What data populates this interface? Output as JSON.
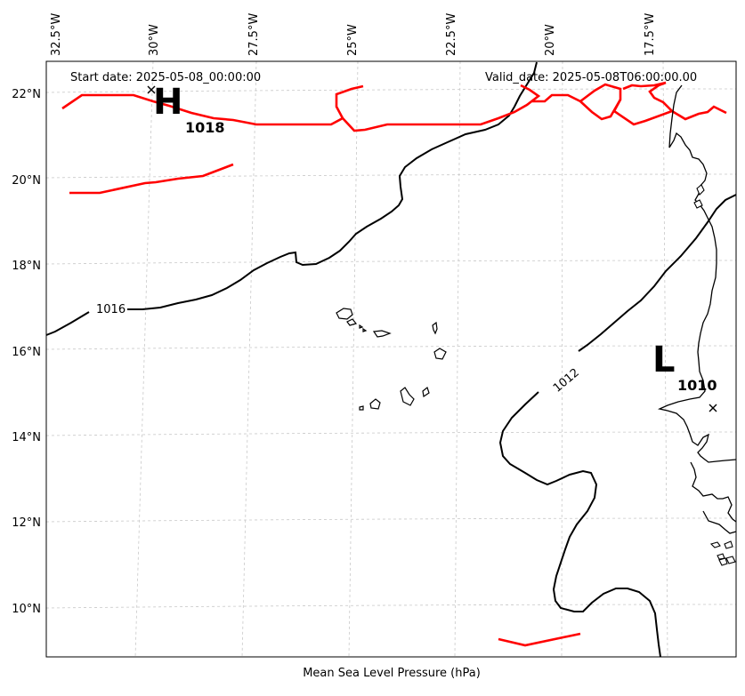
{
  "header": {
    "start_date": "Start date: 2025-05-08_00:00:00",
    "valid_date": "Valid_date: 2025-05-08T06:00:00.00"
  },
  "axes": {
    "xlabel": "Mean Sea Level Pressure (hPa)",
    "lon_ticks": [
      "32.5°W",
      "30°W",
      "27.5°W",
      "25°W",
      "22.5°W",
      "20°W",
      "17.5°W"
    ],
    "lat_ticks": [
      "22°N",
      "20°N",
      "18°N",
      "16°N",
      "14°N",
      "12°N",
      "10°N"
    ]
  },
  "pressure_centers": {
    "high": {
      "symbol": "H",
      "value": "1018",
      "lon": -29.6,
      "lat": 22.1
    },
    "low": {
      "symbol": "L",
      "value": "1010",
      "lon": -16.0,
      "lat": 14.7
    }
  },
  "isobars": {
    "labels": [
      "1016",
      "1012"
    ],
    "line_color": "#000000",
    "highlight_color": "#ff0000"
  },
  "extent": {
    "lon": [
      -33.5,
      -16.0
    ],
    "lat": [
      9.0,
      22.8
    ]
  }
}
